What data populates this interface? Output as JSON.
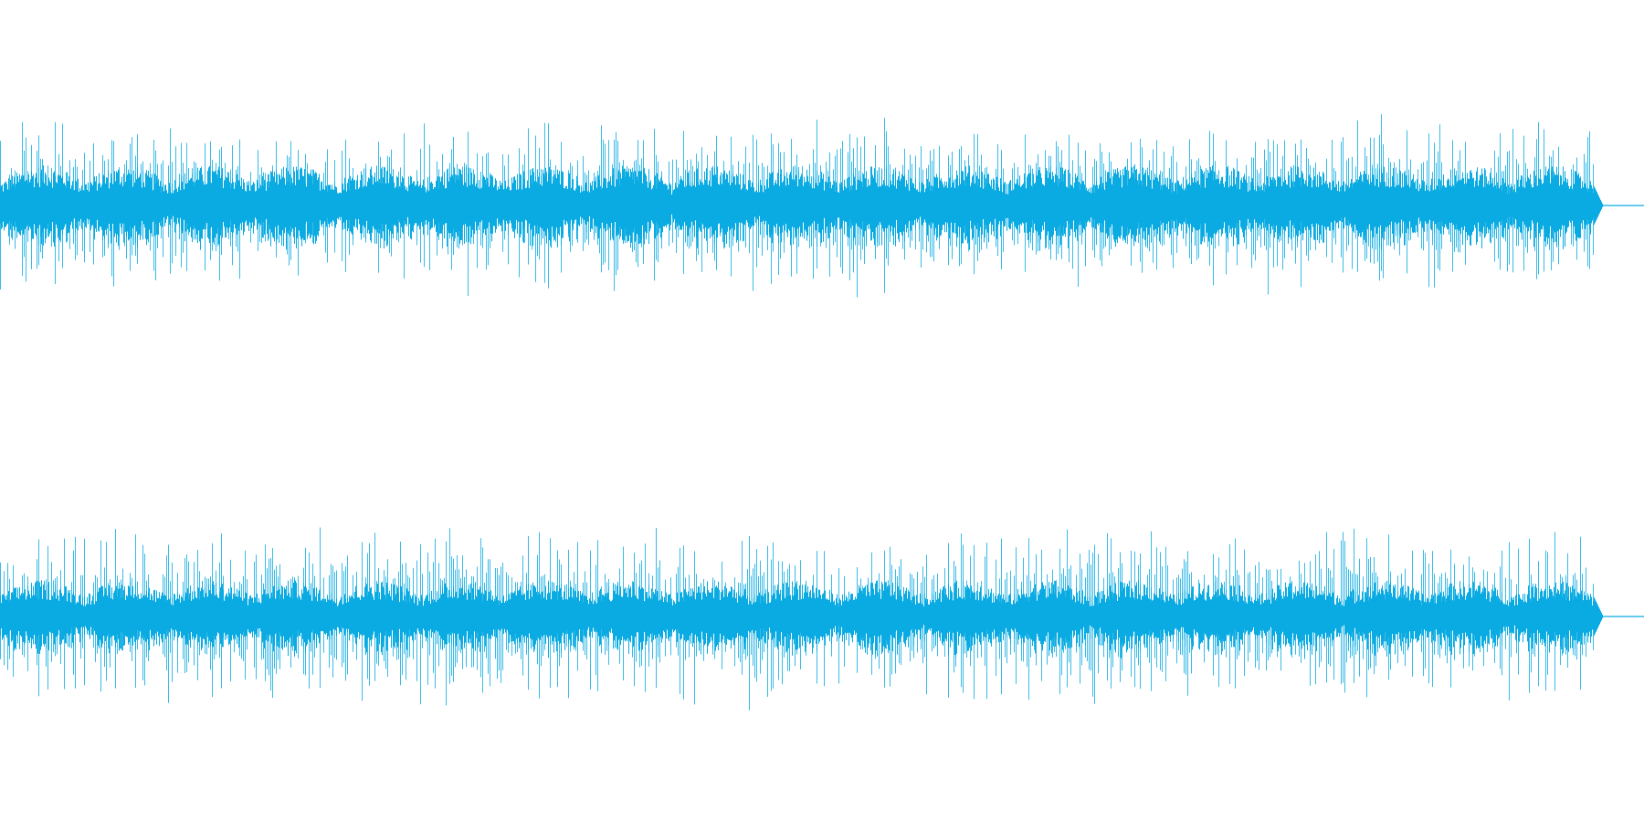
{
  "waveform": {
    "color": "#0aabe2",
    "background": "#ffffff",
    "channels": [
      {
        "id": "left",
        "amplitude_envelope": {
          "peak": 0.96,
          "body": 0.42,
          "burst_intervals": 19,
          "end_fraction": 0.97
        }
      },
      {
        "id": "right",
        "amplitude_envelope": {
          "peak": 0.98,
          "body": 0.38,
          "burst_intervals": 19,
          "end_fraction": 0.97
        }
      }
    ]
  }
}
